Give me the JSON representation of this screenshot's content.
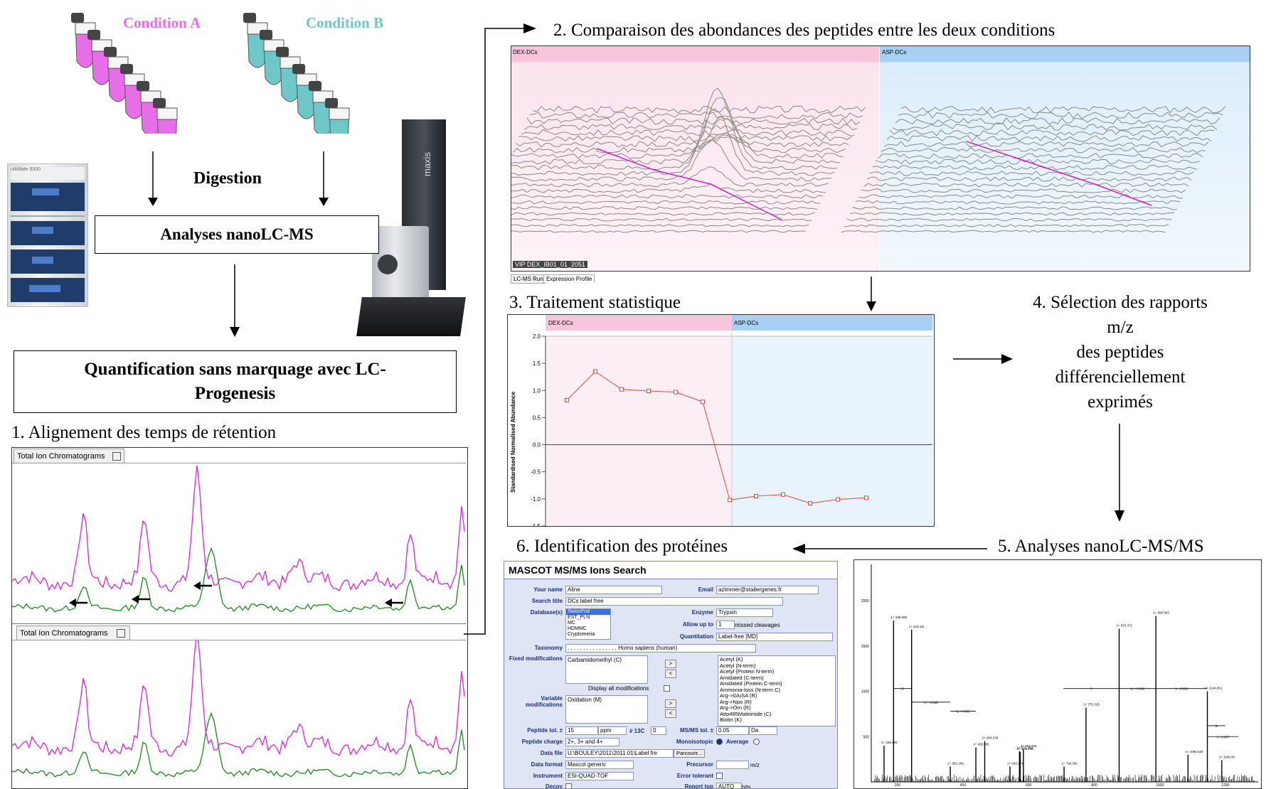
{
  "colors": {
    "condition_a": "#e86ee8",
    "condition_b": "#6ec8c8",
    "trace_magenta": "#e020e0",
    "trace_green": "#1a8a1a",
    "panel_pink": "#f7c6dc",
    "panel_blue": "#a8d0f4",
    "line_red": "#e04848"
  },
  "workflow": {
    "condition_a": "Condition A",
    "condition_b": "Condition B",
    "digestion": "Digestion",
    "analyses_lcms": "Analyses nanoLC-MS",
    "quantification_line1": "Quantification sans marquage avec LC-",
    "quantification_line2": "Progenesis",
    "lc_label": "ultiMate 3000",
    "ms_label": "maxis"
  },
  "steps": {
    "step1": "1. Alignement des temps de rétention",
    "step2": "2. Comparaison des abondances des peptides entre les deux conditions",
    "step3": "3. Traitement  statistique",
    "step4_lines": [
      "4. Sélection des rapports",
      "m/z",
      "des peptides",
      "différenciellement",
      "exprimés"
    ],
    "step5": "5. Analyses nanoLC-MS/MS",
    "step6": "6. Identification des protéines"
  },
  "tic_panel": {
    "tab_top": "Total Ion Chromatograms",
    "tab_bottom": "Total Ion Chromatograms"
  },
  "landscape_panel": {
    "left_header": "DEX-DCs",
    "right_header": "ASP-DCs",
    "run_label": "VIP DEX_IB01_01_2051",
    "tab_run": "LC-MS Run",
    "tab_profile": "Expression Profile"
  },
  "stat_panel": {
    "left_header": "DEX-DCs",
    "right_header": "ASP-DCs",
    "ylabel": "Standardised Normalised Abundance",
    "yticks": [
      "2.0",
      "1.5",
      "1.0",
      "0.5",
      "0.0",
      "-0.5",
      "-1.0",
      "-1.5"
    ]
  },
  "chart_data": {
    "type": "line",
    "ylabel": "Standardised Normalised Abundance",
    "ylim": [
      -1.5,
      2.0
    ],
    "series": [
      {
        "values": [
          0.82,
          1.35,
          1.02,
          0.99,
          0.97,
          0.79,
          -1.02,
          -0.95,
          -0.92,
          -1.08,
          -1.01,
          -0.98
        ]
      }
    ],
    "groups": [
      "DEX-DCs",
      "ASP-DCs"
    ]
  },
  "mascot": {
    "title": "MASCOT MS/MS Ions Search",
    "your_name_label": "Your name",
    "your_name": "Aline",
    "email_label": "Email",
    "email": "azimmer@stallergenes.fr",
    "search_title_label": "Search title",
    "search_title": "DCs label free",
    "databases_label": "Database(s)",
    "databases": [
      "SwissProt",
      "EST_PLN",
      "MC",
      "HDMMC",
      "Cryptomeria"
    ],
    "enzyme_label": "Enzyme",
    "enzyme": "Trypsin",
    "allow_label": "Allow up to",
    "allow_value": "1",
    "allow_suffix": "missed cleavages",
    "quant_label": "Quantitation",
    "quant_value": "Label-free [MD]",
    "taxonomy_label": "Taxonomy",
    "taxonomy": ". . . . . . . . . . . . . . . . Homo sapiens (human)",
    "fixed_label": "Fixed modifications",
    "fixed_value": "Carbamidomethyl (C)",
    "display_all": "Display all modifications",
    "variable_label": "Variable modifications",
    "variable_value": "Oxidation (M)",
    "mods_list": [
      "Acetyl (K)",
      "Acetyl (N-term)",
      "Acetyl (Protein N-term)",
      "Amidated (C-term)",
      "Amidated (Protein C-term)",
      "Ammonia-loss (N-term C)",
      "Arg->GluSA (R)",
      "Arg->Npo (R)",
      "Arg->Orn (R)",
      "Atto495Maleimide (C)",
      "Biotin (K)"
    ],
    "add_button": ">",
    "remove_button": "<",
    "peptide_tol_label": "Peptide tol. ±",
    "peptide_tol": "15",
    "peptide_tol_unit": "ppm",
    "c13_label": "# 13C",
    "c13_value": "0",
    "msms_tol_label": "MS/MS tol. ±",
    "msms_tol": "0.05",
    "msms_unit": "Da",
    "charge_label": "Peptide charge",
    "charge_value": "2+, 3+ and 4+",
    "mono_label": "Monoisotopic",
    "average_label": "Average",
    "data_file_label": "Data file",
    "data_file": "U:\\BOULEY\\2011\\2011 01\\Label fre",
    "browse": "Parcourir...",
    "format_label": "Data format",
    "format_value": "Mascot generic",
    "precursor_label": "Precursor",
    "precursor_unit": "m/z",
    "instrument_label": "Instrument",
    "instrument_value": "ESI-QUAD-TOF",
    "error_tol_label": "Error tolerant",
    "decoy_label": "Decoy",
    "report_label": "Report top",
    "report_value": "AUTO",
    "report_suffix": "hits"
  },
  "msms_panel": {
    "yticks": [
      "2000",
      "1500",
      "1000",
      "500"
    ],
    "xticks": [
      "200",
      "400",
      "600",
      "800",
      "1000",
      "1200"
    ],
    "peak_labels": [
      "1+ 159.094",
      "1+ 188.098",
      "1+ 243.111",
      "1+ 361.183",
      "1+ 438.965",
      "2+ 466.239",
      "1+ 543.274",
      "2+ 572.282",
      "2+ 573.750",
      "2+ 584.326",
      "1+ 708.302",
      "1+ 775.329",
      "1+ 876.371",
      "1+ 988.363",
      "1+ 1086.530",
      "1+ 1144.861",
      "1+ 1189.46"
    ],
    "sequence_labels": [
      "G",
      "V + 0.005",
      "IL - 0.003",
      "Y",
      "IL + 0.002",
      "V - 0.001",
      "G",
      "A - 0.007"
    ]
  }
}
